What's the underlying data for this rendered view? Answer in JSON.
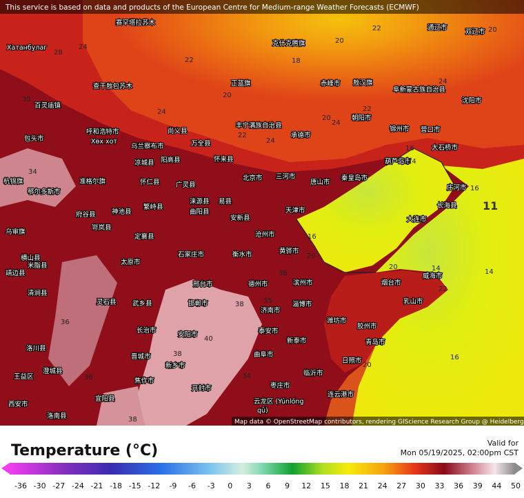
{
  "notice": "This service is based on data and products of the European Centre for Medium-range Weather Forecasts (ECMWF)",
  "attribution": "Map data © OpenStreetMap contributors, rendering GIScience Research Group @ Heidelberg University",
  "legend": {
    "title": "Temperature (°C)",
    "valid_label": "Valid for",
    "valid_time": "Mon 05/19/2025, 02:00pm CST",
    "ticks": [
      -36,
      -30,
      -27,
      -24,
      -21,
      -18,
      -15,
      -12,
      -9,
      -6,
      -3,
      0,
      3,
      6,
      9,
      12,
      15,
      18,
      21,
      24,
      27,
      30,
      33,
      36,
      39,
      44,
      50
    ]
  },
  "map": {
    "places": [
      "Хатанбулаг",
      "赛罕塔拉苏木",
      "克什克腾旗",
      "通辽市",
      "双辽市",
      "查干敖包苏木",
      "百灵庙镇",
      "正蓝旗",
      "赤峰市",
      "敖汉旗",
      "朝阳市",
      "沈阳市",
      "阜新蒙古族自治县",
      "呼和浩特市",
      "Хөх хот",
      "包头市",
      "尚义县",
      "万全县",
      "承德市",
      "丰宁满族自治县",
      "锦州市",
      "营口市",
      "大石桥市",
      "乌兰察布市",
      "凉城县",
      "阳高县",
      "怀来县",
      "北京市",
      "三河市",
      "唐山市",
      "秦皇岛市",
      "葫芦岛市",
      "杭锦旗",
      "鄂尔多斯市",
      "准格尔旗",
      "怀仁县",
      "广灵县",
      "涞源县",
      "易县",
      "天津市",
      "长海县",
      "大连市",
      "庄河市",
      "府谷县",
      "神池县",
      "繁峙县",
      "安新县",
      "曲阳县",
      "沧州市",
      "乌审旗",
      "岢岚县",
      "定襄县",
      "石家庄市",
      "衡水市",
      "黄骅市",
      "横山县",
      "米脂县",
      "太原市",
      "邢台市",
      "德州市",
      "滨州市",
      "烟台市",
      "威海市",
      "靖边县",
      "清涧县",
      "灵石县",
      "武乡县",
      "邯郸市",
      "济南市",
      "淄博市",
      "潍坊市",
      "青岛市",
      "乳山市",
      "长治市",
      "安阳市",
      "泰安市",
      "新泰市",
      "胶州市",
      "洛川县",
      "晋城市",
      "新乡市",
      "曲阜市",
      "日照市",
      "王益区",
      "澄城县",
      "焦作市",
      "开封市",
      "临沂市",
      "枣庄市",
      "连云港市",
      "西安市",
      "洛南县",
      "宜阳县",
      "云龙区 (Yúnlóng",
      "qū)"
    ],
    "contours": [
      "22",
      "20",
      "18",
      "22",
      "20",
      "24",
      "22",
      "24",
      "20",
      "24",
      "22",
      "24",
      "20",
      "16",
      "14",
      "16",
      "14",
      "16",
      "14",
      "16",
      "20",
      "20",
      "22",
      "20",
      "40",
      "38",
      "38",
      "35",
      "34",
      "34",
      "36",
      "36",
      "38",
      "28",
      "24",
      "30",
      "38",
      "11"
    ]
  }
}
